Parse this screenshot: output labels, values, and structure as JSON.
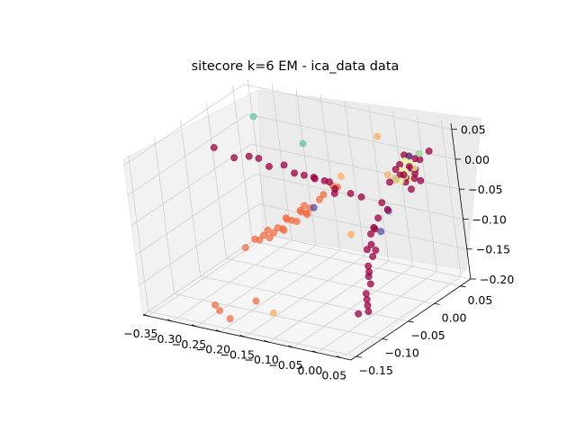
{
  "chart_data": {
    "type": "scatter",
    "subtype": "3d",
    "title": "sitecore k=6 EM - ica_data data",
    "xlabel": "",
    "ylabel": "",
    "zlabel": "",
    "xlim": [
      -0.36,
      0.07
    ],
    "ylim": [
      -0.16,
      0.07
    ],
    "zlim": [
      -0.2,
      0.06
    ],
    "x_ticks": [
      "−0.35",
      "−0.30",
      "−0.25",
      "−0.20",
      "−0.15",
      "−0.10",
      "−0.05",
      "0.00",
      "0.05"
    ],
    "y_ticks": [
      "−0.15",
      "−0.10",
      "−0.05",
      "0.00",
      "0.05"
    ],
    "z_ticks": [
      "−0.20",
      "−0.15",
      "−0.10",
      "−0.05",
      "0.00",
      "0.05"
    ],
    "grid": true,
    "legend": "none",
    "colors": {
      "crimson": "#9e0142",
      "orange": "#f46d43",
      "lightorange": "#fdae61",
      "yellow": "#e6f598",
      "mint": "#99d594",
      "purple": "#5e4fa2",
      "teal": "#66c2a5"
    },
    "series": [
      {
        "color": "crimson",
        "points": [
          [
            0.02,
            0.04,
            0.01
          ],
          [
            0.02,
            0.03,
            0.0
          ],
          [
            0.01,
            0.03,
            0.02
          ],
          [
            0.02,
            0.02,
            -0.01
          ],
          [
            0.03,
            0.03,
            0.0
          ],
          [
            0.01,
            0.02,
            0.01
          ],
          [
            0.02,
            0.01,
            0.0
          ],
          [
            0.03,
            0.02,
            0.01
          ],
          [
            0.01,
            0.01,
            -0.01
          ],
          [
            0.04,
            0.02,
            0.0
          ],
          [
            0.02,
            0.0,
            0.0
          ],
          [
            0.03,
            0.01,
            -0.01
          ],
          [
            0.05,
            0.01,
            0.0
          ],
          [
            0.04,
            0.0,
            0.01
          ],
          [
            0.0,
            0.02,
            0.0
          ],
          [
            0.02,
            0.03,
            0.02
          ],
          [
            0.03,
            0.04,
            0.01
          ],
          [
            0.05,
            0.02,
            -0.01
          ],
          [
            0.04,
            0.01,
            -0.02
          ],
          [
            0.02,
            -0.01,
            0.0
          ],
          [
            -0.05,
            -0.05,
            0.0
          ],
          [
            -0.06,
            -0.05,
            0.01
          ],
          [
            -0.04,
            -0.06,
            0.0
          ],
          [
            -0.07,
            -0.05,
            0.01
          ],
          [
            -0.03,
            -0.04,
            -0.01
          ],
          [
            -0.08,
            -0.06,
            0.02
          ],
          [
            -0.09,
            -0.05,
            0.01
          ],
          [
            -0.1,
            -0.06,
            0.02
          ],
          [
            -0.12,
            -0.06,
            0.02
          ],
          [
            -0.14,
            -0.06,
            0.03
          ],
          [
            -0.16,
            -0.07,
            0.03
          ],
          [
            -0.18,
            -0.07,
            0.04
          ],
          [
            -0.2,
            -0.07,
            0.04
          ],
          [
            -0.22,
            -0.08,
            0.04
          ],
          [
            -0.26,
            -0.08,
            0.05
          ],
          [
            0.01,
            -0.02,
            -0.03
          ],
          [
            0.01,
            -0.03,
            -0.05
          ],
          [
            0.0,
            -0.03,
            -0.07
          ],
          [
            0.0,
            -0.04,
            -0.09
          ],
          [
            0.0,
            -0.04,
            -0.11
          ],
          [
            0.0,
            -0.05,
            -0.13
          ],
          [
            0.0,
            -0.05,
            -0.15
          ],
          [
            0.0,
            -0.06,
            -0.17
          ],
          [
            0.0,
            -0.06,
            -0.18
          ],
          [
            0.0,
            -0.06,
            -0.19
          ],
          [
            0.0,
            -0.05,
            -0.12
          ],
          [
            -0.01,
            -0.04,
            -0.1
          ],
          [
            -0.01,
            -0.03,
            -0.08
          ],
          [
            0.0,
            -0.06,
            -0.16
          ],
          [
            -0.01,
            -0.07,
            -0.19
          ],
          [
            0.01,
            -0.04,
            -0.06
          ],
          [
            0.02,
            -0.05,
            -0.09
          ],
          [
            0.01,
            -0.06,
            -0.13
          ],
          [
            0.02,
            -0.02,
            -0.04
          ],
          [
            -0.02,
            -0.03,
            -0.02
          ],
          [
            0.04,
            0.05,
            0.02
          ]
        ]
      },
      {
        "color": "orange",
        "points": [
          [
            -0.13,
            -0.04,
            -0.06
          ],
          [
            -0.14,
            -0.05,
            -0.07
          ],
          [
            -0.12,
            -0.04,
            -0.05
          ],
          [
            -0.15,
            -0.05,
            -0.07
          ],
          [
            -0.16,
            -0.06,
            -0.08
          ],
          [
            -0.14,
            -0.04,
            -0.06
          ],
          [
            -0.17,
            -0.06,
            -0.08
          ],
          [
            -0.18,
            -0.06,
            -0.09
          ],
          [
            -0.19,
            -0.07,
            -0.09
          ],
          [
            -0.2,
            -0.07,
            -0.1
          ],
          [
            -0.16,
            -0.05,
            -0.07
          ],
          [
            -0.13,
            -0.05,
            -0.05
          ],
          [
            -0.11,
            -0.03,
            -0.04
          ],
          [
            -0.1,
            -0.03,
            -0.03
          ],
          [
            -0.09,
            -0.02,
            -0.02
          ],
          [
            -0.08,
            -0.02,
            -0.02
          ],
          [
            -0.21,
            -0.07,
            -0.1
          ],
          [
            -0.22,
            -0.08,
            -0.11
          ],
          [
            -0.15,
            -0.06,
            -0.06
          ],
          [
            -0.17,
            -0.05,
            -0.09
          ],
          [
            -0.18,
            -0.07,
            -0.08
          ],
          [
            -0.12,
            -0.05,
            -0.04
          ],
          [
            -0.14,
            -0.03,
            -0.07
          ],
          [
            -0.19,
            -0.06,
            -0.1
          ],
          [
            -0.24,
            -0.13,
            -0.18
          ],
          [
            -0.22,
            -0.14,
            -0.18
          ],
          [
            -0.2,
            -0.14,
            -0.19
          ],
          [
            -0.14,
            -0.14,
            -0.15
          ]
        ]
      },
      {
        "color": "lightorange",
        "points": [
          [
            -0.04,
            -0.04,
            -0.08
          ],
          [
            -0.13,
            -0.12,
            -0.18
          ],
          [
            0.03,
            -0.02,
            0.02
          ],
          [
            -0.03,
            0.02,
            0.05
          ],
          [
            -0.07,
            -0.02,
            0.0
          ]
        ]
      },
      {
        "color": "yellow",
        "points": [
          [
            0.02,
            0.02,
            0.0
          ],
          [
            0.02,
            0.01,
            -0.01
          ],
          [
            0.01,
            0.02,
            0.0
          ],
          [
            0.03,
            0.01,
            0.0
          ],
          [
            0.02,
            0.03,
            0.01
          ],
          [
            0.01,
            0.01,
            -0.01
          ],
          [
            0.03,
            0.02,
            -0.01
          ],
          [
            0.02,
            0.0,
            0.0
          ],
          [
            0.01,
            0.03,
            0.01
          ],
          [
            0.04,
            0.02,
            0.01
          ]
        ]
      },
      {
        "color": "mint",
        "points": [
          [
            0.03,
            0.04,
            0.02
          ]
        ]
      },
      {
        "color": "purple",
        "points": [
          [
            0.01,
            -0.01,
            -0.05
          ],
          [
            -0.1,
            -0.05,
            -0.04
          ],
          [
            0.02,
            0.03,
            0.02
          ],
          [
            0.0,
            -0.02,
            -0.08
          ]
        ]
      },
      {
        "color": "teal",
        "points": [
          [
            -0.3,
            0.03,
            0.03
          ],
          [
            -0.13,
            -0.03,
            0.05
          ]
        ]
      }
    ]
  }
}
